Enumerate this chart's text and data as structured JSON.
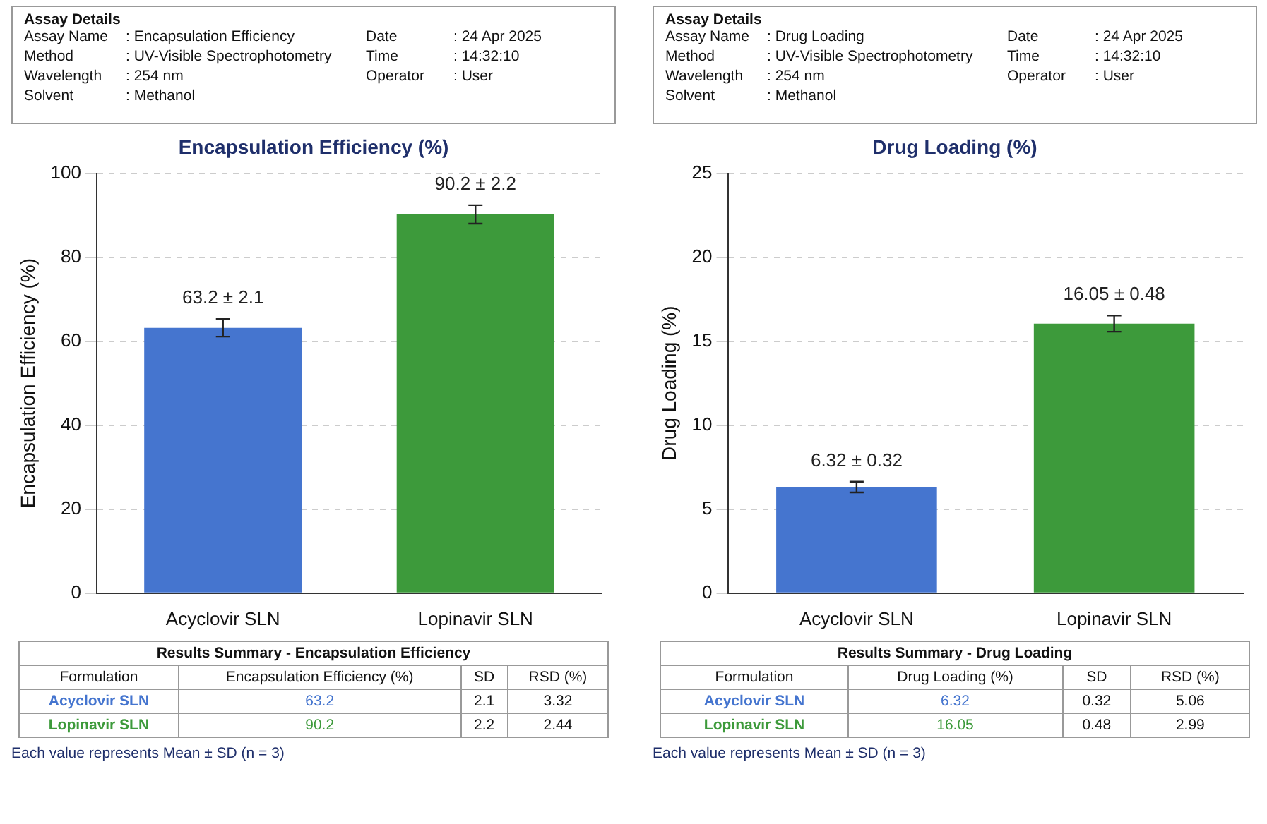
{
  "chart_data": [
    {
      "type": "bar",
      "title": "Encapsulation Efficiency (%)",
      "ylabel": "Encapsulation Efficiency (%)",
      "categories": [
        "Acyclovir SLN",
        "Lopinavir SLN"
      ],
      "values": [
        63.2,
        90.2
      ],
      "errors": [
        2.1,
        2.2
      ],
      "value_labels": [
        "63.2 ± 2.1",
        "90.2 ± 2.2"
      ],
      "colors": [
        "#4575cf",
        "#3d9a3b"
      ],
      "ylim": [
        0,
        100
      ],
      "yticks": [
        0,
        20,
        40,
        60,
        80,
        100
      ],
      "grid": "y",
      "annotations": [
        "Assay Details",
        "Assay Name",
        ": Encapsulation Efficiency",
        "Date",
        ": 24 Apr 2025",
        "Method",
        ": UV-Visible Spectrophotometry",
        "Time",
        ": 14:32:10",
        "Wavelength",
        ": 254 nm",
        "Operator",
        ": User",
        "Solvent",
        ": Methanol",
        "Results Summary - Encapsulation Efficiency",
        "Formulation",
        "Encapsulation Efficiency (%)",
        "SD",
        "RSD (%)",
        "Acyclovir SLN",
        "63.2",
        "2.1",
        "3.32",
        "Lopinavir SLN",
        "90.2",
        "2.2",
        "2.44",
        "Each value represents Mean ± SD (n = 3)"
      ]
    },
    {
      "type": "bar",
      "title": "Drug Loading (%)",
      "ylabel": "Drug Loading (%)",
      "categories": [
        "Acyclovir SLN",
        "Lopinavir SLN"
      ],
      "values": [
        6.32,
        16.05
      ],
      "errors": [
        0.32,
        0.48
      ],
      "value_labels": [
        "6.32 ± 0.32",
        "16.05 ± 0.48"
      ],
      "colors": [
        "#4575cf",
        "#3d9a3b"
      ],
      "ylim": [
        0,
        25
      ],
      "yticks": [
        0,
        5,
        10,
        15,
        20,
        25
      ],
      "grid": "y",
      "annotations": [
        "Assay Details",
        "Assay Name",
        ": Drug Loading",
        "Date",
        ": 24 Apr 2025",
        "Method",
        ": UV-Visible Spectrophotometry",
        "Time",
        ": 14:32:10",
        "Wavelength",
        ": 254 nm",
        "Operator",
        ": User",
        "Solvent",
        ": Methanol",
        "Results Summary - Drug Loading",
        "Formulation",
        "Drug Loading (%)",
        "SD",
        "RSD (%)",
        "Acyclovir SLN",
        "6.32",
        "0.32",
        "5.06",
        "Lopinavir SLN",
        "16.05",
        "0.48",
        "2.99",
        "Each value represents Mean ± SD (n = 3)"
      ]
    }
  ]
}
